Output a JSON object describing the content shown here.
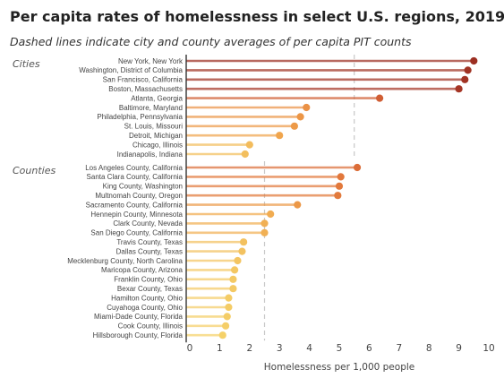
{
  "chart_data": {
    "type": "lollipop",
    "title": "Per capita rates of homelessness in select U.S. regions, 2019",
    "subtitle": "Dashed lines indicate city and county averages of per capita PIT counts",
    "xlabel": "Homelessness per 1,000 people",
    "xlim": [
      0,
      10
    ],
    "xticks": [
      "0",
      "1",
      "2",
      "3",
      "4",
      "5",
      "6",
      "7",
      "8",
      "9",
      "10"
    ],
    "color_scale": [
      "#f5d36b",
      "#f0a24b",
      "#e0743a",
      "#c24a2e",
      "#9c2f22"
    ],
    "groups": [
      {
        "name": "Cities",
        "average": 5.5,
        "items": [
          {
            "label": "New York, New York",
            "value": 9.5
          },
          {
            "label": "Washington, District of Columbia",
            "value": 9.3
          },
          {
            "label": "San Francisco, California",
            "value": 9.2
          },
          {
            "label": "Boston, Massachusetts",
            "value": 9.0
          },
          {
            "label": "Atlanta, Georgia",
            "value": 6.35
          },
          {
            "label": "Baltimore, Maryland",
            "value": 3.9
          },
          {
            "label": "Philadelphia, Pennsylvania",
            "value": 3.7
          },
          {
            "label": "St. Louis, Missouri",
            "value": 3.5
          },
          {
            "label": "Detroit, Michigan",
            "value": 3.0
          },
          {
            "label": "Chicago, Illinois",
            "value": 2.0
          },
          {
            "label": "Indianapolis, Indiana",
            "value": 1.85
          }
        ]
      },
      {
        "name": "Counties",
        "average": 2.5,
        "items": [
          {
            "label": "Los Angeles County, California",
            "value": 5.6
          },
          {
            "label": "Santa Clara County, California",
            "value": 5.05
          },
          {
            "label": "King County, Washington",
            "value": 5.0
          },
          {
            "label": "Multnomah County, Oregon",
            "value": 4.95
          },
          {
            "label": "Sacramento County, California",
            "value": 3.6
          },
          {
            "label": "Hennepin County, Minnesota",
            "value": 2.7
          },
          {
            "label": "Clark County, Nevada",
            "value": 2.5
          },
          {
            "label": "San Diego County, California",
            "value": 2.5
          },
          {
            "label": "Travis County, Texas",
            "value": 1.8
          },
          {
            "label": "Dallas County, Texas",
            "value": 1.75
          },
          {
            "label": "Mecklenburg County, North Carolina",
            "value": 1.6
          },
          {
            "label": "Maricopa County, Arizona",
            "value": 1.5
          },
          {
            "label": "Franklin County, Ohio",
            "value": 1.45
          },
          {
            "label": "Bexar County, Texas",
            "value": 1.45
          },
          {
            "label": "Hamilton County, Ohio",
            "value": 1.3
          },
          {
            "label": "Cuyahoga County, Ohio",
            "value": 1.3
          },
          {
            "label": "Miami-Dade County, Florida",
            "value": 1.25
          },
          {
            "label": "Cook County, Illinois",
            "value": 1.2
          },
          {
            "label": "Hillsborough County, Florida",
            "value": 1.1
          }
        ]
      }
    ],
    "grid": false,
    "legend": "none"
  }
}
